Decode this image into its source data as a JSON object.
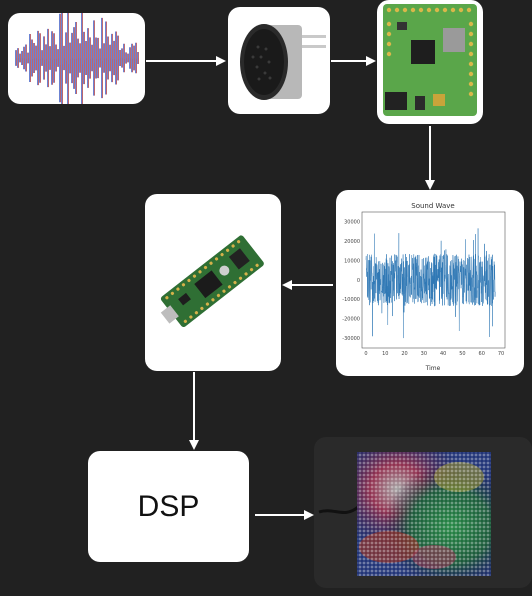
{
  "nodes": {
    "audio_signal": {
      "icon": "audio-waveform-icon"
    },
    "microphone": {
      "icon": "microphone-icon"
    },
    "audio_board": {
      "icon": "audio-adapter-board-icon"
    },
    "sound_wave_plot": {
      "icon": "sound-wave-plot-icon"
    },
    "microcontroller": {
      "icon": "microcontroller-board-icon"
    },
    "dsp": {
      "label": "DSP"
    },
    "led_matrix": {
      "icon": "led-matrix-panel-icon"
    }
  },
  "edges": [
    {
      "from": "audio_signal",
      "to": "microphone"
    },
    {
      "from": "microphone",
      "to": "audio_board"
    },
    {
      "from": "audio_board",
      "to": "sound_wave_plot"
    },
    {
      "from": "sound_wave_plot",
      "to": "microcontroller"
    },
    {
      "from": "microcontroller",
      "to": "dsp"
    },
    {
      "from": "dsp",
      "to": "led_matrix"
    }
  ],
  "chart_data": {
    "type": "line",
    "title": "Sound Wave",
    "xlabel": "Time",
    "ylabel": "",
    "xlim": [
      0,
      70
    ],
    "ylim": [
      -35000,
      35000
    ],
    "xticks": [
      "0",
      "10",
      "20",
      "30",
      "40",
      "50",
      "60",
      "70"
    ],
    "yticks": [
      "30000",
      "20000",
      "10000",
      "0",
      "-10000",
      "-20000",
      "-30000"
    ],
    "yticks_values": [
      30000,
      20000,
      10000,
      0,
      -10000,
      -20000,
      -30000
    ],
    "xticks_values": [
      0,
      10,
      20,
      30,
      40,
      50,
      60,
      70
    ],
    "series": [
      {
        "x_range": [
          0,
          67
        ],
        "amplitude_peak": 30000,
        "color": "#2f78b5"
      }
    ]
  }
}
